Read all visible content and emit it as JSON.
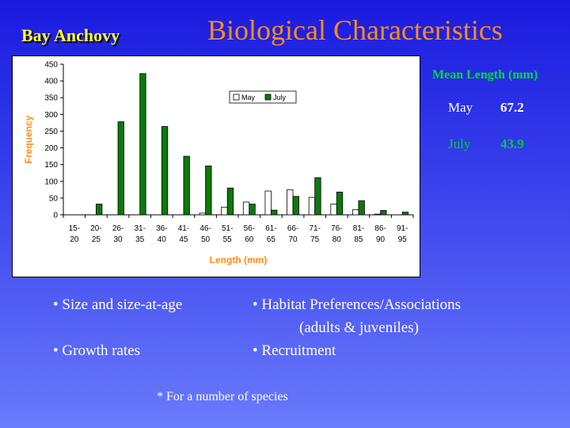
{
  "header": {
    "subtitle": "Bay Anchovy",
    "title": "Biological Characteristics"
  },
  "chart_data": {
    "type": "bar",
    "xlabel": "Length (mm)",
    "ylabel": "Frequency",
    "ylim": [
      0,
      450
    ],
    "yticks": [
      0,
      50,
      100,
      150,
      200,
      250,
      300,
      350,
      400,
      450
    ],
    "grid": false,
    "legend": "top-center",
    "categories": [
      [
        "15-",
        "20"
      ],
      [
        "20-",
        "25"
      ],
      [
        "26-",
        "30"
      ],
      [
        "31-",
        "35"
      ],
      [
        "36-",
        "40"
      ],
      [
        "41-",
        "45"
      ],
      [
        "46-",
        "50"
      ],
      [
        "51-",
        "55"
      ],
      [
        "56-",
        "60"
      ],
      [
        "61-",
        "65"
      ],
      [
        "66-",
        "70"
      ],
      [
        "71-",
        "75"
      ],
      [
        "76-",
        "80"
      ],
      [
        "81-",
        "85"
      ],
      [
        "86-",
        "90"
      ],
      [
        "91-",
        "95"
      ]
    ],
    "series": [
      {
        "name": "May",
        "color": "#ffffff",
        "values": [
          0,
          0,
          0,
          0,
          0,
          0,
          5,
          23,
          38,
          71,
          75,
          52,
          32,
          15,
          2,
          0
        ]
      },
      {
        "name": "July",
        "color": "#0a7a0a",
        "values": [
          0,
          32,
          278,
          422,
          264,
          175,
          146,
          80,
          32,
          14,
          55,
          111,
          68,
          42,
          13,
          8
        ]
      }
    ]
  },
  "mean_length": {
    "title": "Mean Length (mm)",
    "rows": [
      {
        "label": "May",
        "value": "67.2"
      },
      {
        "label": "July",
        "value": "43.9"
      }
    ]
  },
  "bullets": {
    "size": "• Size and size-at-age",
    "growth": "• Growth rates",
    "habitat": "• Habitat Preferences/Associations",
    "habitat_detail": "(adults & juveniles)",
    "recruitment": "• Recruitment"
  },
  "footnote": "* For a number of species"
}
